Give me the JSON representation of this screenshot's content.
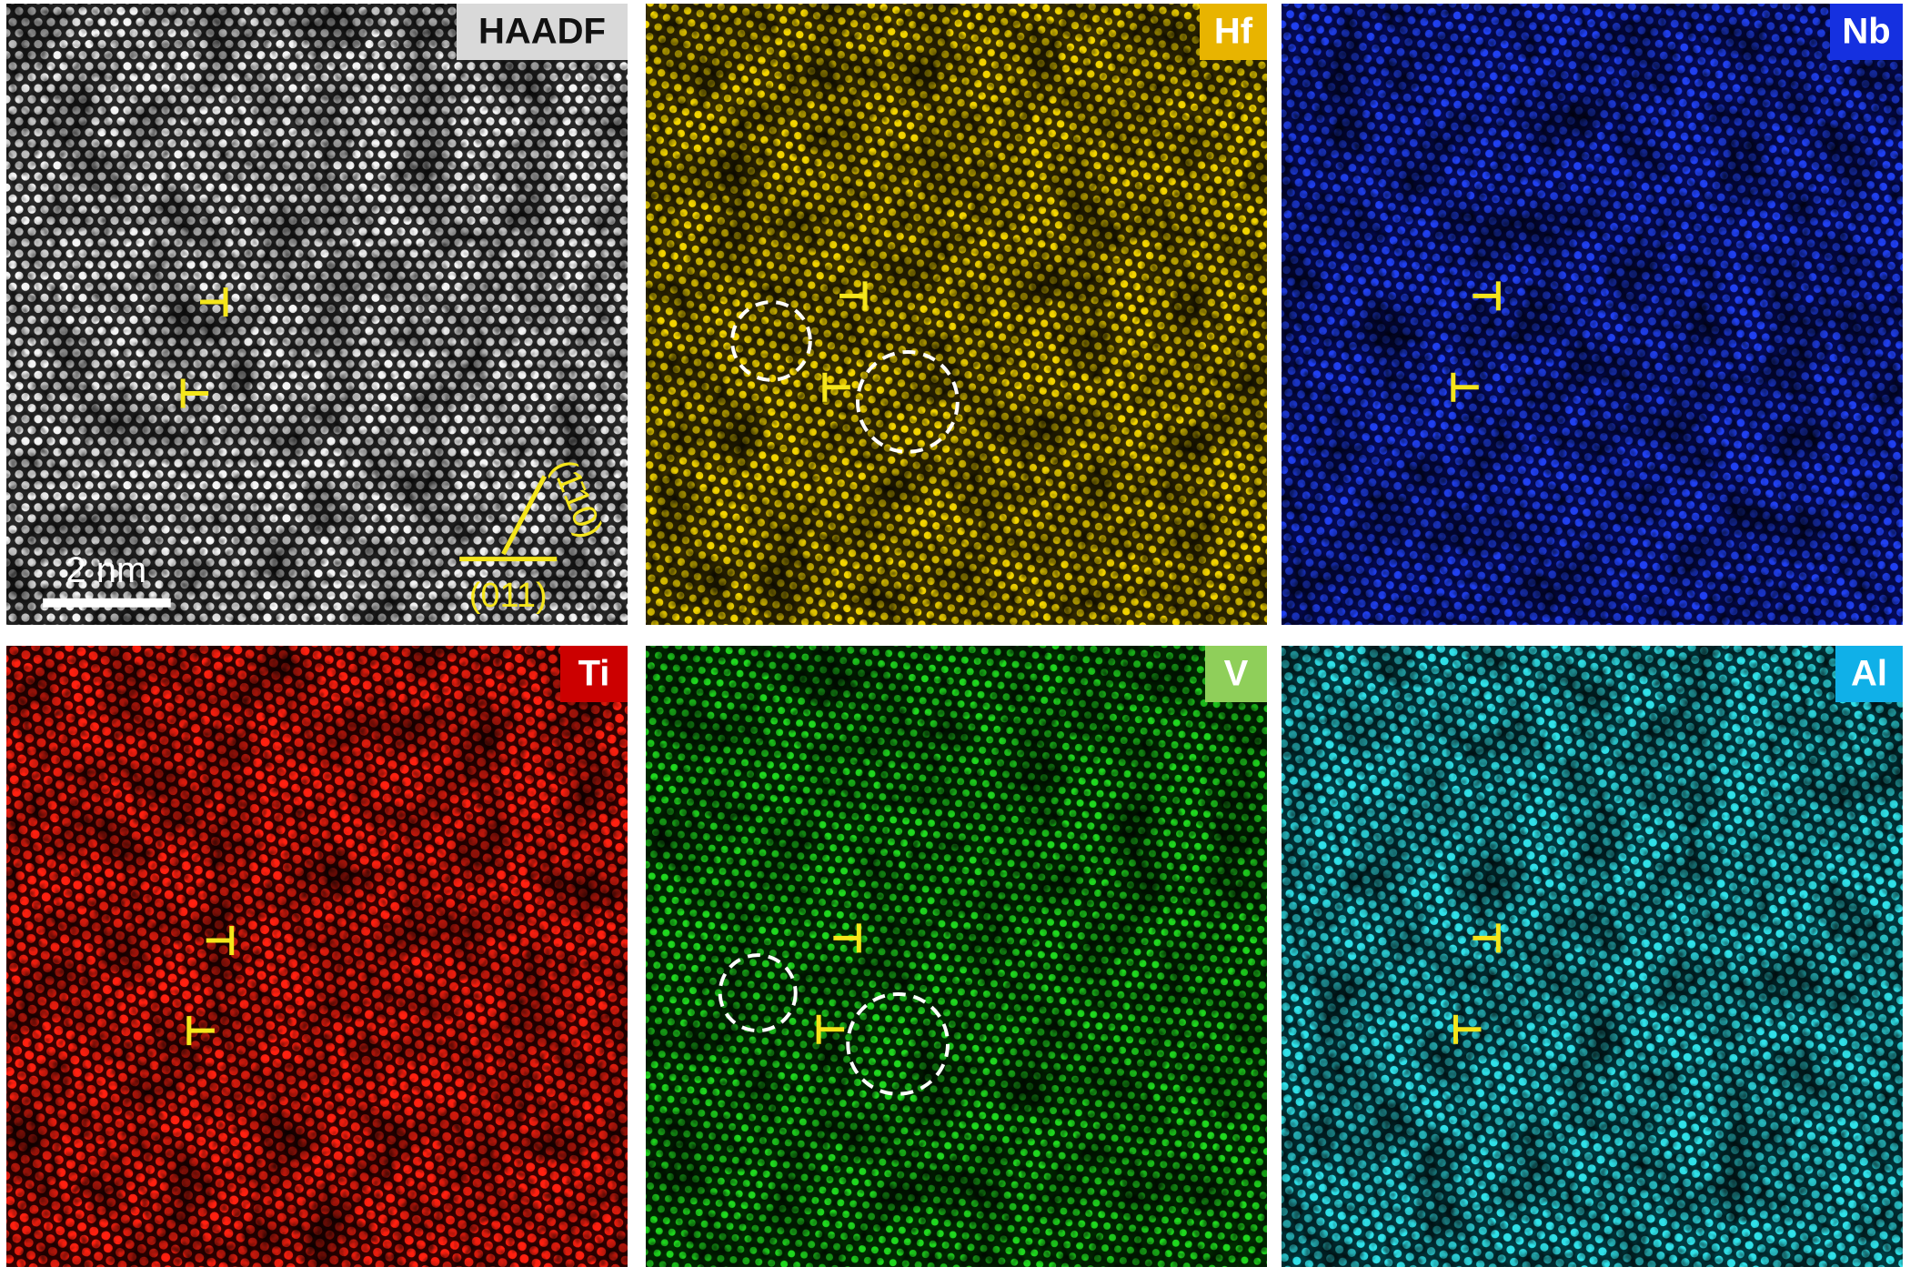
{
  "panels": [
    {
      "label": "HAADF"
    },
    {
      "label": "Hf"
    },
    {
      "label": "Nb"
    },
    {
      "label": "Ti"
    },
    {
      "label": "V"
    },
    {
      "label": "Al"
    }
  ],
  "scale_bar": "2 nm",
  "annotations": [
    "(1̄10)",
    "(011)"
  ]
}
